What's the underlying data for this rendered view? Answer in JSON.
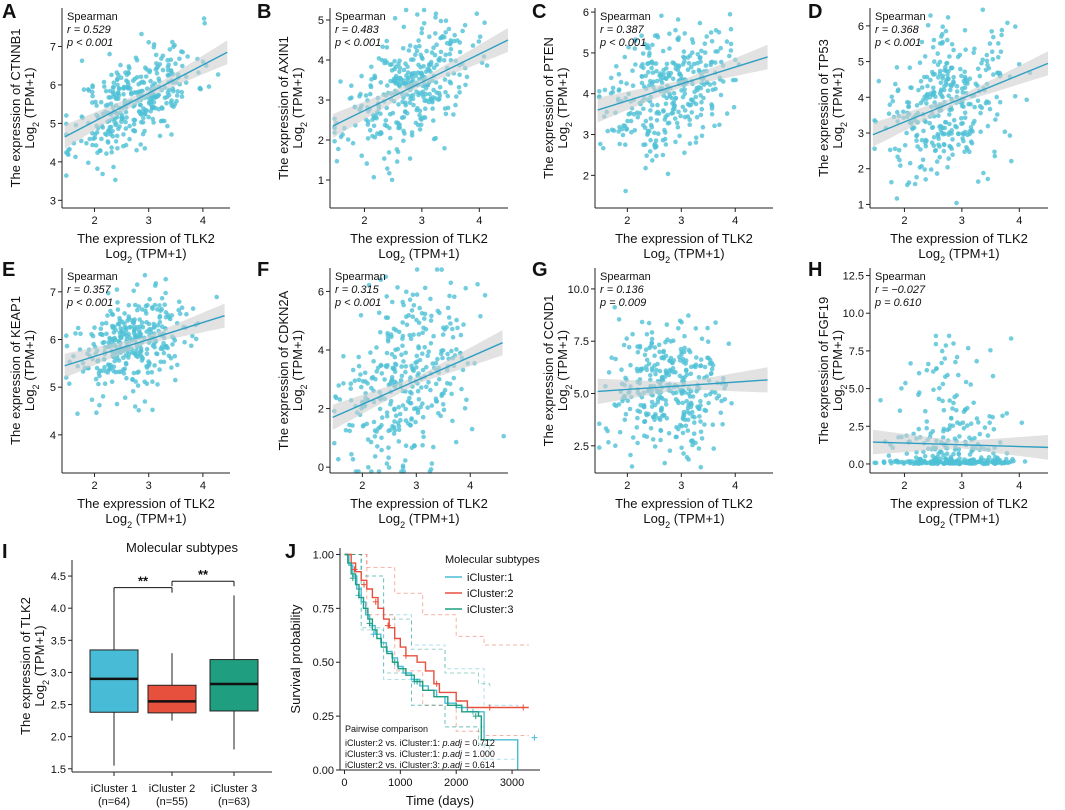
{
  "colors": {
    "point": "#4fc1d6",
    "fit": "#2e9fc2",
    "band": "#cfcfcf",
    "c1": "#48bcd7",
    "c2": "#e8503e",
    "c3": "#1f9e80",
    "axis": "#222222"
  },
  "chart_data": [
    {
      "id": "A",
      "type": "scatter",
      "panel_label": "A",
      "gene": "CTNNB1",
      "ylabel": "The expression of CTNNB1",
      "ylabel_sub": "Log2 (TPM+1)",
      "xlabel": "The expression of TLK2",
      "xlabel_sub": "Log2 (TPM+1)",
      "xlim": [
        1.4,
        4.5
      ],
      "ylim": [
        2.8,
        8.0
      ],
      "xticks": [
        2,
        3,
        4
      ],
      "yticks": [
        3,
        4,
        5,
        6,
        7
      ],
      "method": "Spearman",
      "r_text": "r = 0.529",
      "p_text": "p < 0.001",
      "fit": {
        "x0": 1.45,
        "y0": 4.65,
        "x1": 4.45,
        "y1": 6.85
      },
      "scatter": {
        "n": 350,
        "xmean": 2.75,
        "xsd": 0.55,
        "slope": 0.73,
        "noise": 0.6,
        "seed": 11
      }
    },
    {
      "id": "B",
      "type": "scatter",
      "panel_label": "B",
      "gene": "AXIN1",
      "ylabel": "The expression of AXIN1",
      "ylabel_sub": "Log2 (TPM+1)",
      "xlabel": "The expression of TLK2",
      "xlabel_sub": "Log2 (TPM+1)",
      "xlim": [
        1.4,
        4.5
      ],
      "ylim": [
        0.3,
        5.3
      ],
      "xticks": [
        2,
        3,
        4
      ],
      "yticks": [
        1,
        2,
        3,
        4,
        5
      ],
      "method": "Spearman",
      "r_text": "r = 0.483",
      "p_text": "p < 0.001",
      "fit": {
        "x0": 1.45,
        "y0": 2.35,
        "x1": 4.5,
        "y1": 4.5
      },
      "scatter": {
        "n": 350,
        "xmean": 2.75,
        "xsd": 0.55,
        "slope": 0.7,
        "noise": 0.7,
        "seed": 23
      }
    },
    {
      "id": "C",
      "type": "scatter",
      "panel_label": "C",
      "gene": "PTEN",
      "ylabel": "The expression of PTEN",
      "ylabel_sub": "Log2 (TPM+1)",
      "xlabel": "The expression of TLK2",
      "xlabel_sub": "Log2 (TPM+1)",
      "xlim": [
        1.4,
        4.7
      ],
      "ylim": [
        1.2,
        6.1
      ],
      "xticks": [
        2,
        3,
        4
      ],
      "yticks": [
        2,
        3,
        4,
        5,
        6
      ],
      "method": "Spearman",
      "r_text": "r = 0.387",
      "p_text": "p < 0.001",
      "fit": {
        "x0": 1.45,
        "y0": 3.6,
        "x1": 4.6,
        "y1": 4.9
      },
      "scatter": {
        "n": 350,
        "xmean": 2.75,
        "xsd": 0.55,
        "slope": 0.42,
        "noise": 0.75,
        "seed": 37
      }
    },
    {
      "id": "D",
      "type": "scatter",
      "panel_label": "D",
      "gene": "TP53",
      "ylabel": "The expression of TP53",
      "ylabel_sub": "Log2 (TPM+1)",
      "xlabel": "The expression of TLK2",
      "xlabel_sub": "Log2 (TPM+1)",
      "xlim": [
        1.4,
        4.5
      ],
      "ylim": [
        0.9,
        6.5
      ],
      "xticks": [
        2,
        3,
        4
      ],
      "yticks": [
        1,
        2,
        3,
        4,
        5,
        6
      ],
      "method": "Spearman",
      "r_text": "r = 0.368",
      "p_text": "p < 0.001",
      "fit": {
        "x0": 1.45,
        "y0": 2.95,
        "x1": 4.5,
        "y1": 4.95
      },
      "scatter": {
        "n": 350,
        "xmean": 2.75,
        "xsd": 0.55,
        "slope": 0.65,
        "noise": 1.0,
        "seed": 41
      }
    },
    {
      "id": "E",
      "type": "scatter",
      "panel_label": "E",
      "gene": "KEAP1",
      "ylabel": "The expression of KEAP1",
      "ylabel_sub": "Log2 (TPM+1)",
      "xlabel": "The expression of TLK2",
      "xlabel_sub": "Log2 (TPM+1)",
      "xlim": [
        1.4,
        4.5
      ],
      "ylim": [
        3.2,
        7.5
      ],
      "xticks": [
        2,
        3,
        4
      ],
      "yticks": [
        4,
        5,
        6,
        7
      ],
      "method": "Spearman",
      "r_text": "r = 0.357",
      "p_text": "p < 0.001",
      "fit": {
        "x0": 1.45,
        "y0": 5.45,
        "x1": 4.4,
        "y1": 6.5
      },
      "scatter": {
        "n": 350,
        "xmean": 2.75,
        "xsd": 0.55,
        "slope": 0.35,
        "noise": 0.5,
        "seed": 53
      }
    },
    {
      "id": "F",
      "type": "scatter",
      "panel_label": "F",
      "gene": "CDKN2A",
      "ylabel": "The expression of CDKN2A",
      "ylabel_sub": "Log2 (TPM+1)",
      "xlabel": "The expression of TLK2",
      "xlabel_sub": "Log2 (TPM+1)",
      "xlim": [
        1.4,
        4.7
      ],
      "ylim": [
        -0.2,
        6.8
      ],
      "xticks": [
        2,
        3,
        4
      ],
      "yticks": [
        0,
        2,
        4,
        6
      ],
      "method": "Spearman",
      "r_text": "r = 0.315",
      "p_text": "p < 0.001",
      "fit": {
        "x0": 1.45,
        "y0": 1.7,
        "x1": 4.6,
        "y1": 4.25
      },
      "scatter": {
        "n": 350,
        "xmean": 2.75,
        "xsd": 0.55,
        "slope": 0.8,
        "noise": 1.5,
        "seed": 67
      }
    },
    {
      "id": "G",
      "type": "scatter",
      "panel_label": "G",
      "gene": "CCND1",
      "ylabel": "The expression of CCND1",
      "ylabel_sub": "Log2 (TPM+1)",
      "xlabel": "The expression of TLK2",
      "xlabel_sub": "Log2 (TPM+1)",
      "xlim": [
        1.4,
        4.7
      ],
      "ylim": [
        1.2,
        11.0
      ],
      "xticks": [
        2,
        3,
        4
      ],
      "yticks": [
        2.5,
        5.0,
        7.5,
        10.0
      ],
      "method": "Spearman",
      "r_text": "r = 0.136",
      "p_text": "p = 0.009",
      "fit": {
        "x0": 1.45,
        "y0": 5.1,
        "x1": 4.6,
        "y1": 5.65
      },
      "scatter": {
        "n": 350,
        "xmean": 2.75,
        "xsd": 0.55,
        "slope": 0.18,
        "noise": 1.5,
        "seed": 79
      }
    },
    {
      "id": "H",
      "type": "scatter",
      "panel_label": "H",
      "gene": "FGF19",
      "ylabel": "The expression of FGF19",
      "ylabel_sub": "Log2 (TPM+1)",
      "xlabel": "The expression of TLK2",
      "xlabel_sub": "Log2 (TPM+1)",
      "xlim": [
        1.4,
        4.5
      ],
      "ylim": [
        -0.6,
        13.0
      ],
      "xticks": [
        2,
        3,
        4
      ],
      "yticks": [
        0.0,
        2.5,
        5.0,
        7.5,
        10.0,
        12.5
      ],
      "method": "Spearman",
      "r_text": "r = −0.027",
      "p_text": "p = 0.610",
      "fit": {
        "x0": 1.45,
        "y0": 1.45,
        "x1": 4.5,
        "y1": 1.1
      },
      "scatter": {
        "n": 330,
        "xmean": 2.75,
        "xsd": 0.55,
        "slope": 0,
        "noise": 0,
        "seed": 97,
        "zero_inflated": true
      }
    },
    {
      "id": "I",
      "type": "box",
      "panel_label": "I",
      "title": "Molecular subtypes",
      "ylabel": "The expression of TLK2",
      "ylabel_sub": "Log2 (TPM+1)",
      "ylim": [
        1.45,
        4.75
      ],
      "yticks": [
        1.5,
        2.0,
        2.5,
        3.0,
        3.5,
        4.0,
        4.5
      ],
      "categories": [
        "iCluster 1",
        "iCluster 2",
        "iCluster 3"
      ],
      "ns": [
        "(n=64)",
        "(n=55)",
        "(n=63)"
      ],
      "boxes": [
        {
          "min": 1.55,
          "q1": 2.38,
          "median": 2.9,
          "q3": 3.35,
          "max": 4.25
        },
        {
          "min": 2.25,
          "q1": 2.37,
          "median": 2.55,
          "q3": 2.8,
          "max": 3.3
        },
        {
          "min": 1.8,
          "q1": 2.4,
          "median": 2.82,
          "q3": 3.2,
          "max": 4.2
        }
      ],
      "sig": [
        {
          "from": 0,
          "to": 1,
          "label": "**",
          "y": 4.32
        },
        {
          "from": 1,
          "to": 2,
          "label": "**",
          "y": 4.42
        }
      ]
    },
    {
      "id": "J",
      "type": "line",
      "panel_label": "J",
      "subtype": "survival",
      "xlabel": "Time (days)",
      "ylabel": "Survival probability",
      "xlim": [
        -80,
        3500
      ],
      "ylim": [
        0,
        1.03
      ],
      "xticks": [
        0,
        1000,
        2000,
        3000
      ],
      "yticks": [
        0.0,
        0.25,
        0.5,
        0.75,
        1.0
      ],
      "ytick_labels": [
        "0.00",
        "0.25",
        "0.50",
        "0.75",
        "1.00"
      ],
      "legend_title": "Molecular subtypes",
      "series": [
        {
          "name": "iCluster:1",
          "color_key": "c1",
          "steps": [
            [
              0,
              1.0
            ],
            [
              80,
              0.95
            ],
            [
              150,
              0.9
            ],
            [
              220,
              0.84
            ],
            [
              300,
              0.78
            ],
            [
              380,
              0.72
            ],
            [
              450,
              0.67
            ],
            [
              550,
              0.63
            ],
            [
              650,
              0.59
            ],
            [
              750,
              0.55
            ],
            [
              850,
              0.52
            ],
            [
              950,
              0.48
            ],
            [
              1050,
              0.45
            ],
            [
              1200,
              0.42
            ],
            [
              1350,
              0.39
            ],
            [
              1500,
              0.37
            ],
            [
              1650,
              0.34
            ],
            [
              1800,
              0.31
            ],
            [
              2000,
              0.29
            ],
            [
              2200,
              0.27
            ],
            [
              2500,
              0.14
            ],
            [
              3100,
              0.0
            ]
          ],
          "ci_hi": [
            [
              0,
              1.0
            ],
            [
              300,
              0.9
            ],
            [
              700,
              0.72
            ],
            [
              1200,
              0.58
            ],
            [
              1800,
              0.47
            ],
            [
              2500,
              0.3
            ],
            [
              3100,
              0.28
            ]
          ],
          "ci_lo": [
            [
              0,
              1.0
            ],
            [
              300,
              0.65
            ],
            [
              700,
              0.42
            ],
            [
              1200,
              0.3
            ],
            [
              1800,
              0.2
            ],
            [
              2500,
              0.05
            ],
            [
              3100,
              0.02
            ]
          ],
          "censor": [
            [
              250,
              0.81
            ],
            [
              520,
              0.63
            ],
            [
              1250,
              0.41
            ],
            [
              2100,
              0.29
            ],
            [
              2300,
              0.27
            ],
            [
              3400,
              0.15
            ]
          ]
        },
        {
          "name": "iCluster:2",
          "color_key": "c2",
          "steps": [
            [
              0,
              1.0
            ],
            [
              120,
              0.96
            ],
            [
              200,
              0.92
            ],
            [
              300,
              0.88
            ],
            [
              400,
              0.84
            ],
            [
              500,
              0.8
            ],
            [
              600,
              0.75
            ],
            [
              700,
              0.7
            ],
            [
              800,
              0.66
            ],
            [
              900,
              0.61
            ],
            [
              1000,
              0.57
            ],
            [
              1100,
              0.53
            ],
            [
              1300,
              0.5
            ],
            [
              1450,
              0.46
            ],
            [
              1600,
              0.4
            ],
            [
              1700,
              0.36
            ],
            [
              2000,
              0.32
            ],
            [
              2200,
              0.29
            ],
            [
              3300,
              0.29
            ]
          ],
          "ci_hi": [
            [
              0,
              1.0
            ],
            [
              400,
              0.94
            ],
            [
              900,
              0.82
            ],
            [
              1400,
              0.72
            ],
            [
              2000,
              0.62
            ],
            [
              2500,
              0.58
            ],
            [
              3300,
              0.58
            ]
          ],
          "ci_lo": [
            [
              0,
              1.0
            ],
            [
              400,
              0.72
            ],
            [
              900,
              0.46
            ],
            [
              1400,
              0.3
            ],
            [
              2000,
              0.18
            ],
            [
              2500,
              0.16
            ],
            [
              3300,
              0.16
            ]
          ],
          "censor": [
            [
              180,
              0.93
            ],
            [
              350,
              0.86
            ],
            [
              560,
              0.78
            ],
            [
              780,
              0.67
            ],
            [
              1100,
              0.53
            ],
            [
              1650,
              0.4
            ],
            [
              2600,
              0.29
            ],
            [
              3200,
              0.29
            ]
          ]
        },
        {
          "name": "iCluster:3",
          "color_key": "c3",
          "steps": [
            [
              0,
              1.0
            ],
            [
              60,
              0.96
            ],
            [
              120,
              0.91
            ],
            [
              200,
              0.86
            ],
            [
              260,
              0.8
            ],
            [
              340,
              0.75
            ],
            [
              420,
              0.7
            ],
            [
              500,
              0.65
            ],
            [
              580,
              0.61
            ],
            [
              660,
              0.57
            ],
            [
              760,
              0.54
            ],
            [
              860,
              0.5
            ],
            [
              960,
              0.47
            ],
            [
              1100,
              0.44
            ],
            [
              1250,
              0.41
            ],
            [
              1400,
              0.37
            ],
            [
              1600,
              0.34
            ],
            [
              1850,
              0.3
            ],
            [
              2100,
              0.27
            ],
            [
              2400,
              0.25
            ],
            [
              2450,
              0.14
            ],
            [
              2600,
              0.14
            ]
          ],
          "ci_hi": [
            [
              0,
              1.0
            ],
            [
              300,
              0.9
            ],
            [
              700,
              0.7
            ],
            [
              1200,
              0.56
            ],
            [
              1800,
              0.45
            ],
            [
              2400,
              0.4
            ],
            [
              2600,
              0.38
            ]
          ],
          "ci_lo": [
            [
              0,
              1.0
            ],
            [
              300,
              0.66
            ],
            [
              700,
              0.45
            ],
            [
              1200,
              0.3
            ],
            [
              1800,
              0.2
            ],
            [
              2400,
              0.12
            ],
            [
              2600,
              0.08
            ]
          ],
          "censor": [
            [
              150,
              0.89
            ],
            [
              450,
              0.68
            ],
            [
              900,
              0.5
            ],
            [
              1300,
              0.41
            ],
            [
              2000,
              0.3
            ],
            [
              2350,
              0.25
            ]
          ]
        }
      ],
      "pairwise_title": "Pairwise comparison",
      "pairwise": [
        {
          "pair": "iCluster:2 vs. iCluster:1: ",
          "label": "p.adj",
          "value": " = 0.712"
        },
        {
          "pair": "iCluster:3 vs. iCluster:1: ",
          "label": "p.adj",
          "value": " = 1.000"
        },
        {
          "pair": "iCluster:2 vs. iCluster:3: ",
          "label": "p.adj",
          "value": " = 0.614"
        }
      ]
    }
  ]
}
